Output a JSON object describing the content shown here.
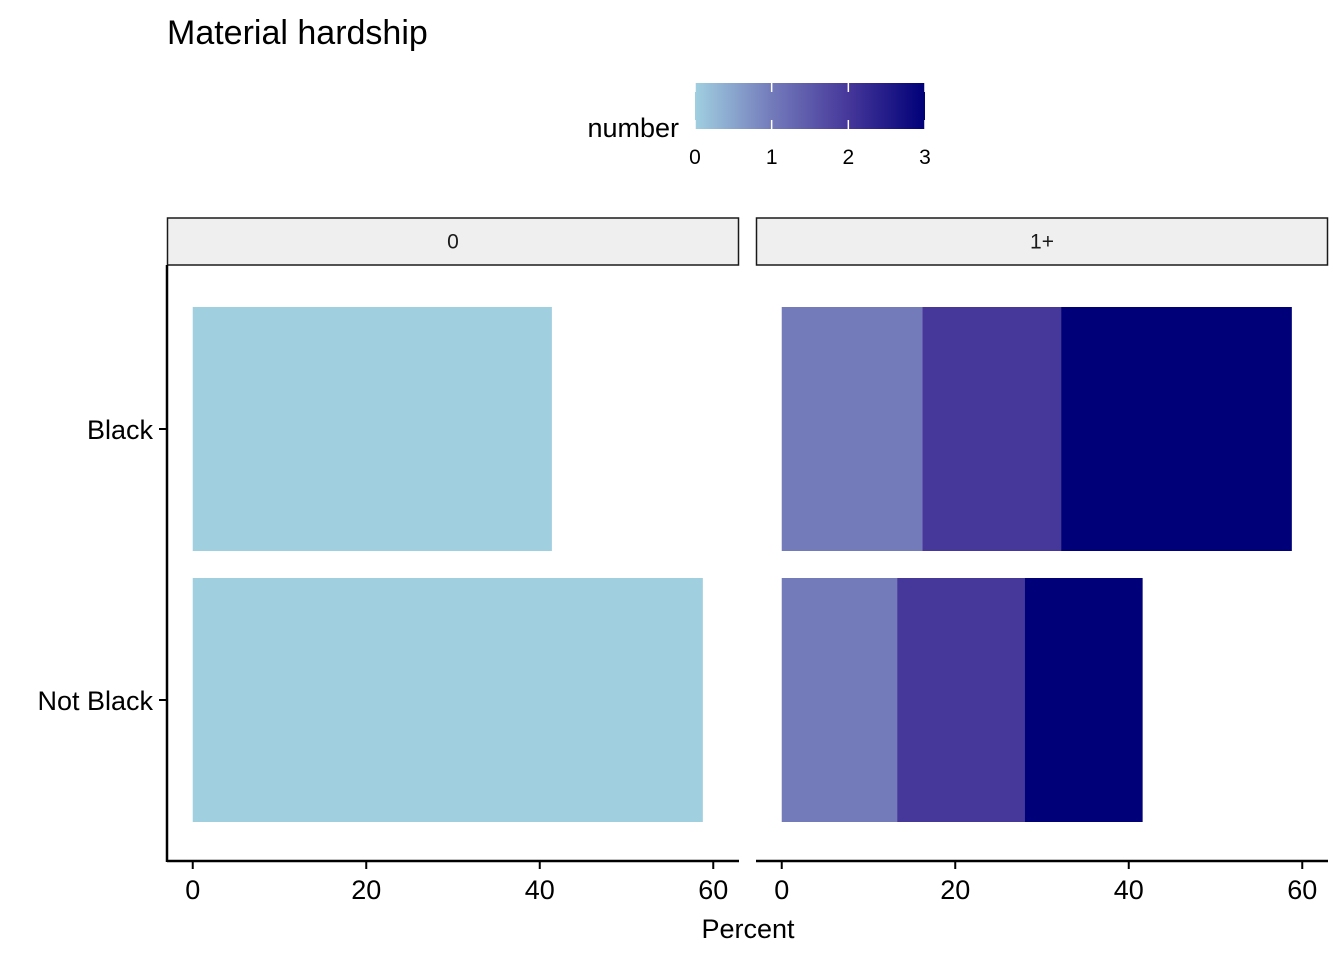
{
  "chart_data": {
    "type": "bar",
    "orientation": "horizontal",
    "stacked": true,
    "title": "Material hardship",
    "xlabel": "Percent",
    "ylabel": "",
    "categories": [
      "Black",
      "Not Black"
    ],
    "xlim": [
      0,
      60
    ],
    "x_ticks": [
      "0",
      "20",
      "40",
      "60"
    ],
    "grid": false,
    "facets": [
      {
        "label": "0",
        "segments": [
          {
            "number": 0,
            "color": "#a0cfe0",
            "values": [
              41.4,
              58.8
            ]
          }
        ]
      },
      {
        "label": "1+",
        "segments": [
          {
            "number": 1,
            "color": "#737bbb",
            "values": [
              16.2,
              13.3
            ]
          },
          {
            "number": 2,
            "color": "#46379a",
            "values": [
              16.0,
              14.7
            ]
          },
          {
            "number": 3,
            "color": "#000078",
            "values": [
              26.6,
              13.6
            ]
          }
        ]
      }
    ],
    "legend": {
      "title": "number",
      "type": "colorbar",
      "position": "top",
      "range": [
        0,
        3
      ],
      "ticks": [
        "0",
        "1",
        "2",
        "3"
      ],
      "colors": [
        "#a0cfe0",
        "#737bbb",
        "#46379a",
        "#000078"
      ]
    }
  }
}
